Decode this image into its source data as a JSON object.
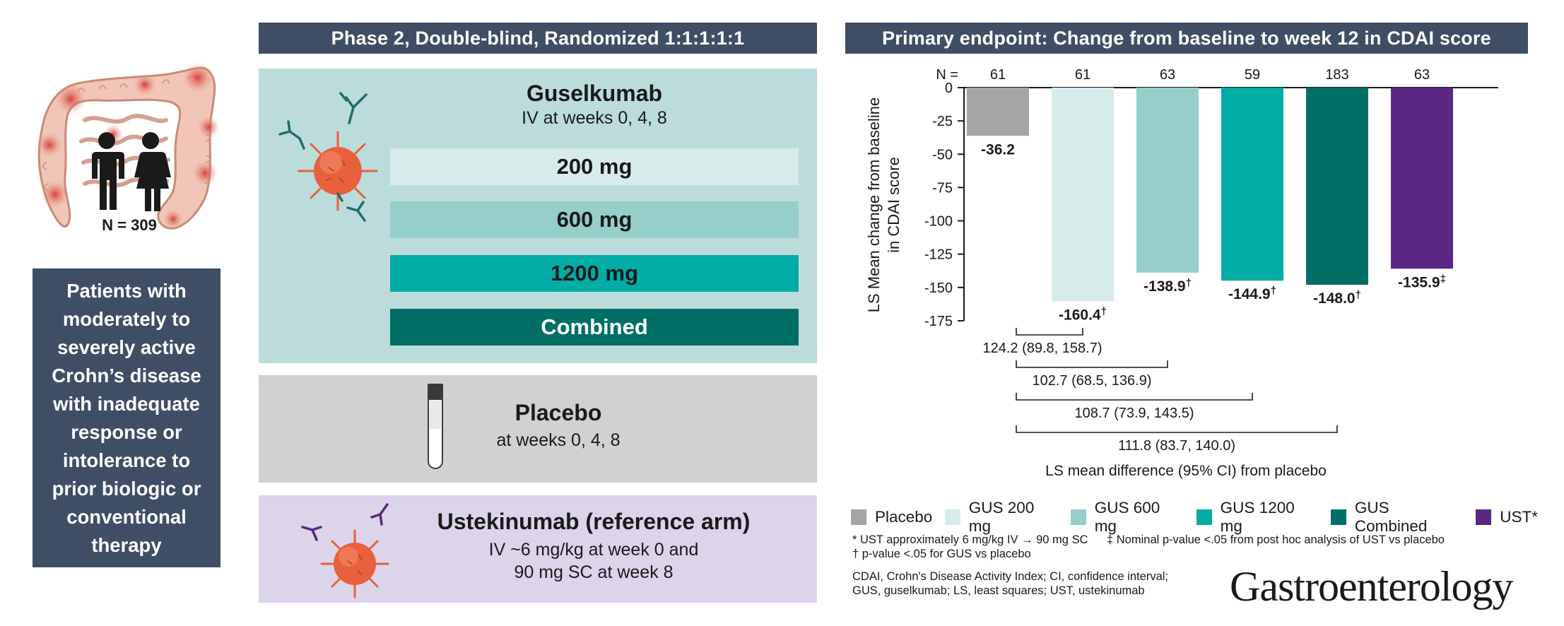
{
  "colors": {
    "header_bg": "#3f4e64",
    "gus_panel_bg": "#bcdcdc",
    "placebo_panel_bg": "#d3d0d0",
    "ust_panel_bg": "#dcd4ea",
    "placebo": "#a7a4a5",
    "gus200": "#d7ebeb",
    "gus600": "#96ceca",
    "gus1200": "#00aca5",
    "gus_combined": "#006f66",
    "ust": "#5a2782",
    "virus": "#e8603c"
  },
  "left": {
    "n_label": "N = 309",
    "patients_text": [
      "Patients with",
      "moderately to",
      "severely active",
      "Crohn’s disease",
      "with inadequate",
      "response or",
      "intolerance to",
      "prior biologic or",
      "conventional",
      "therapy"
    ]
  },
  "design": {
    "header": "Phase 2, Double-blind, Randomized 1:1:1:1:1",
    "guselkumab": {
      "title": "Guselkumab",
      "subtitle": "IV at weeks 0, 4, 8",
      "doses": [
        "200 mg",
        "600 mg",
        "1200 mg",
        "Combined"
      ]
    },
    "placebo": {
      "title": "Placebo",
      "subtitle": "at weeks 0, 4, 8"
    },
    "ustekinumab": {
      "title": "Ustekinumab (reference arm)",
      "line1": "IV ~6 mg/kg at week 0 and",
      "line2": "90 mg SC at week 8"
    }
  },
  "endpoint": {
    "header": "Primary endpoint: Change from baseline to week 12 in CDAI score",
    "n_prefix": "N ="
  },
  "chart_data": {
    "type": "bar",
    "categories": [
      "Placebo",
      "GUS 200 mg",
      "GUS 600 mg",
      "GUS 1200 mg",
      "GUS Combined",
      "UST*"
    ],
    "n": [
      61,
      61,
      63,
      59,
      183,
      63
    ],
    "values": [
      -36.2,
      -160.4,
      -138.9,
      -144.9,
      -148.0,
      -135.9
    ],
    "value_labels": [
      "-36.2",
      "-160.4",
      "-138.9",
      "-144.9",
      "-148.0",
      "-135.9"
    ],
    "marks": [
      "",
      "†",
      "†",
      "†",
      "†",
      "‡"
    ],
    "ylabel_line1": "LS Mean change from baseline",
    "ylabel_line2": "in CDAI score",
    "ylim": [
      -175,
      0
    ],
    "yticks": [
      0,
      -25,
      -50,
      -75,
      -100,
      -125,
      -150,
      -175
    ],
    "ytick_labels": [
      "0",
      "-25",
      "-50",
      "-75",
      "-100",
      "-125",
      "-150",
      "-175"
    ],
    "differences": [
      {
        "group": "GUS 200 mg",
        "label": "124.2 (89.8, 158.7)"
      },
      {
        "group": "GUS 600 mg",
        "label": "102.7 (68.5, 136.9)"
      },
      {
        "group": "GUS 1200 mg",
        "label": "108.7 (73.9, 143.5)"
      },
      {
        "group": "GUS Combined",
        "label": "111.8 (83.7, 140.0)"
      }
    ],
    "differences_caption": "LS mean difference (95% CI) from placebo",
    "legend": [
      "Placebo",
      "GUS 200 mg",
      "GUS 600 mg",
      "GUS 1200 mg",
      "GUS Combined",
      "UST*"
    ]
  },
  "footnotes": {
    "ust_note": "*  UST approximately 6 mg/kg IV → 90 mg SC",
    "nominal_note": "‡  Nominal p-value <.05 from post hoc analysis of UST vs placebo",
    "dagger_note": "†  p-value <.05 for GUS vs placebo",
    "abbrev1": "CDAI, Crohn's Disease Activity Index; CI, confidence interval;",
    "abbrev2": "GUS, guselkumab; LS, least squares; UST, ustekinumab"
  },
  "journal": "Gastroenterology"
}
